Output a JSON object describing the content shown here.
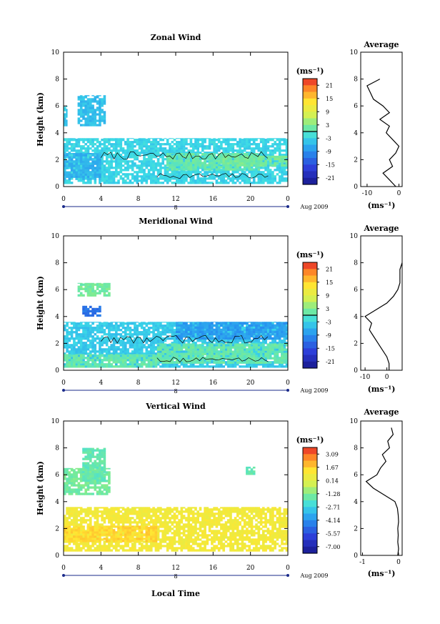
{
  "chart_data": [
    {
      "type": "heatmap",
      "title": "Zonal Wind",
      "ylabel": "Height (km)",
      "xlim": [
        0,
        24
      ],
      "ylim": [
        0,
        10
      ],
      "x_ticks": [
        "0",
        "4",
        "8",
        "12",
        "16",
        "20",
        "0"
      ],
      "y_ticks": [
        "0",
        "2",
        "4",
        "6",
        "8",
        "10"
      ],
      "date_marker": "8",
      "date_label": "Aug 2009",
      "colorbar": {
        "unit": "(ms⁻¹)",
        "ticks": [
          "21",
          "15",
          "9",
          "3",
          "-3",
          "-9",
          "-15",
          "-21"
        ],
        "range": [
          -24,
          24
        ],
        "zero_line": true
      },
      "regions": [
        {
          "x": [
            0,
            24
          ],
          "y": [
            0.2,
            3.6
          ],
          "value": -3
        },
        {
          "x": [
            0,
            4
          ],
          "y": [
            0.5,
            2.5
          ],
          "value": -6
        },
        {
          "x": [
            11,
            21
          ],
          "y": [
            1.2,
            2.5
          ],
          "value": 1
        },
        {
          "x": [
            17,
            24
          ],
          "y": [
            1.5,
            2.3
          ],
          "value": 2
        },
        {
          "x": [
            1.5,
            4.5
          ],
          "y": [
            4.5,
            6.8
          ],
          "value": -5
        },
        {
          "x": [
            0,
            0.4
          ],
          "y": [
            4.5,
            6.0
          ],
          "value": -4
        }
      ],
      "profile": {
        "title": "Average",
        "xlabel": "(ms⁻¹)",
        "xlim": [
          -12,
          1
        ],
        "x_ticks": [
          "-10",
          "0"
        ],
        "height": [
          0,
          0.5,
          1,
          1.5,
          2,
          2.5,
          3,
          3.5,
          4,
          4.5,
          5,
          5.5,
          6,
          6.5,
          7,
          7.5,
          8
        ],
        "wind": [
          -1,
          -3,
          -5,
          -2,
          -3,
          -1,
          0,
          -2,
          -4,
          -3,
          -6,
          -3,
          -5,
          -8,
          -9,
          -10,
          -6
        ]
      }
    },
    {
      "type": "heatmap",
      "title": "Meridional Wind",
      "ylabel": "Height (km)",
      "xlim": [
        0,
        24
      ],
      "ylim": [
        0,
        10
      ],
      "x_ticks": [
        "0",
        "4",
        "8",
        "12",
        "16",
        "20",
        "0"
      ],
      "y_ticks": [
        "0",
        "2",
        "4",
        "6",
        "8",
        "10"
      ],
      "date_marker": "8",
      "date_label": "Aug 2009",
      "colorbar": {
        "unit": "(ms⁻¹)",
        "ticks": [
          "21",
          "15",
          "9",
          "3",
          "-3",
          "-9",
          "-15",
          "-21"
        ],
        "range": [
          -24,
          24
        ],
        "zero_line": true
      },
      "regions": [
        {
          "x": [
            0,
            24
          ],
          "y": [
            0.2,
            3.6
          ],
          "value": -4
        },
        {
          "x": [
            10,
            24
          ],
          "y": [
            0.5,
            2.0
          ],
          "value": 1
        },
        {
          "x": [
            0,
            10
          ],
          "y": [
            0.2,
            1.2
          ],
          "value": 1
        },
        {
          "x": [
            12,
            24
          ],
          "y": [
            2.3,
            3.6
          ],
          "value": -8
        },
        {
          "x": [
            1.5,
            5
          ],
          "y": [
            5.5,
            6.5
          ],
          "value": 2
        },
        {
          "x": [
            2,
            4
          ],
          "y": [
            4.0,
            4.8
          ],
          "value": -12
        }
      ],
      "profile": {
        "title": "Average",
        "xlabel": "(ms⁻¹)",
        "xlim": [
          -12,
          7
        ],
        "x_ticks": [
          "-10",
          "0"
        ],
        "height": [
          0,
          0.5,
          1,
          1.5,
          2,
          2.5,
          3,
          3.5,
          4,
          4.5,
          5,
          5.5,
          6,
          6.5,
          7,
          7.5,
          8
        ],
        "wind": [
          1,
          1,
          0,
          -2,
          -4,
          -6,
          -8,
          -7,
          -10,
          -5,
          0,
          3,
          5,
          6,
          6,
          6,
          7
        ]
      }
    },
    {
      "type": "heatmap",
      "title": "Vertical Wind",
      "ylabel": "Height (km)",
      "xlabel": "Local Time",
      "xlim": [
        0,
        24
      ],
      "ylim": [
        0,
        10
      ],
      "x_ticks": [
        "0",
        "4",
        "8",
        "12",
        "16",
        "20",
        "0"
      ],
      "y_ticks": [
        "0",
        "2",
        "4",
        "6",
        "8",
        "10"
      ],
      "date_marker": "8",
      "date_label": "Aug 2009",
      "colorbar": {
        "unit": "(ms⁻¹)",
        "ticks": [
          "3.09",
          "1.67",
          "0.14",
          "-1.28",
          "-2.71",
          "-4.14",
          "-5.57",
          "-7.00"
        ],
        "range": [
          -8,
          4
        ],
        "zero_line": false
      },
      "regions": [
        {
          "x": [
            0,
            24
          ],
          "y": [
            0.3,
            3.6
          ],
          "value": 0.9
        },
        {
          "x": [
            0,
            10
          ],
          "y": [
            1.0,
            2.2
          ],
          "value": 1.6
        },
        {
          "x": [
            0,
            5
          ],
          "y": [
            4.5,
            6.5
          ],
          "value": -1.5
        },
        {
          "x": [
            2,
            4.5
          ],
          "y": [
            5.5,
            8.0
          ],
          "value": -1.8
        },
        {
          "x": [
            19.5,
            20.5
          ],
          "y": [
            6.0,
            6.6
          ],
          "value": -1.8
        }
      ],
      "profile": {
        "title": "Average",
        "xlabel": "(ms⁻¹)",
        "xlim": [
          -1.05,
          0.1
        ],
        "x_ticks": [
          "-1",
          "0"
        ],
        "height": [
          0,
          0.5,
          1,
          1.5,
          2,
          2.5,
          3,
          3.5,
          4,
          4.5,
          5,
          5.5,
          6,
          6.5,
          7,
          7.5,
          8,
          8.5,
          9,
          9.5
        ],
        "wind": [
          -0.02,
          0.0,
          -0.02,
          -0.01,
          -0.02,
          0.0,
          -0.01,
          -0.03,
          -0.1,
          -0.4,
          -0.7,
          -0.9,
          -0.6,
          -0.5,
          -0.35,
          -0.45,
          -0.25,
          -0.3,
          -0.15,
          -0.2
        ]
      }
    }
  ]
}
